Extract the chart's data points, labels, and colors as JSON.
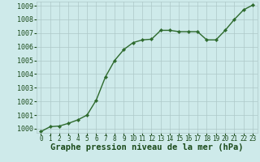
{
  "x": [
    0,
    1,
    2,
    3,
    4,
    5,
    6,
    7,
    8,
    9,
    10,
    11,
    12,
    13,
    14,
    15,
    16,
    17,
    18,
    19,
    20,
    21,
    22,
    23
  ],
  "y": [
    999.8,
    1000.15,
    1000.2,
    1000.4,
    1000.65,
    1001.0,
    1002.1,
    1003.8,
    1005.0,
    1005.8,
    1006.3,
    1006.5,
    1006.55,
    1007.2,
    1007.2,
    1007.1,
    1007.1,
    1007.1,
    1006.5,
    1006.5,
    1007.2,
    1008.0,
    1008.7,
    1009.05
  ],
  "line_color": "#2d6a2d",
  "marker": "D",
  "marker_size": 2.2,
  "line_width": 1.0,
  "bg_color": "#ceeaea",
  "grid_color": "#aec8c8",
  "xlabel": "Graphe pression niveau de la mer (hPa)",
  "xlabel_fontsize": 7.5,
  "xlabel_color": "#1a4a1a",
  "xlabel_bold": true,
  "ytick_min": 1000,
  "ytick_max": 1009,
  "ytick_step": 1,
  "xtick_labels": [
    "0",
    "1",
    "2",
    "3",
    "4",
    "5",
    "6",
    "7",
    "8",
    "9",
    "10",
    "11",
    "12",
    "13",
    "14",
    "15",
    "16",
    "17",
    "18",
    "19",
    "20",
    "21",
    "22",
    "23"
  ],
  "tick_fontsize": 5.5,
  "tick_color": "#1a4a1a",
  "ytick_fontsize": 6.0
}
